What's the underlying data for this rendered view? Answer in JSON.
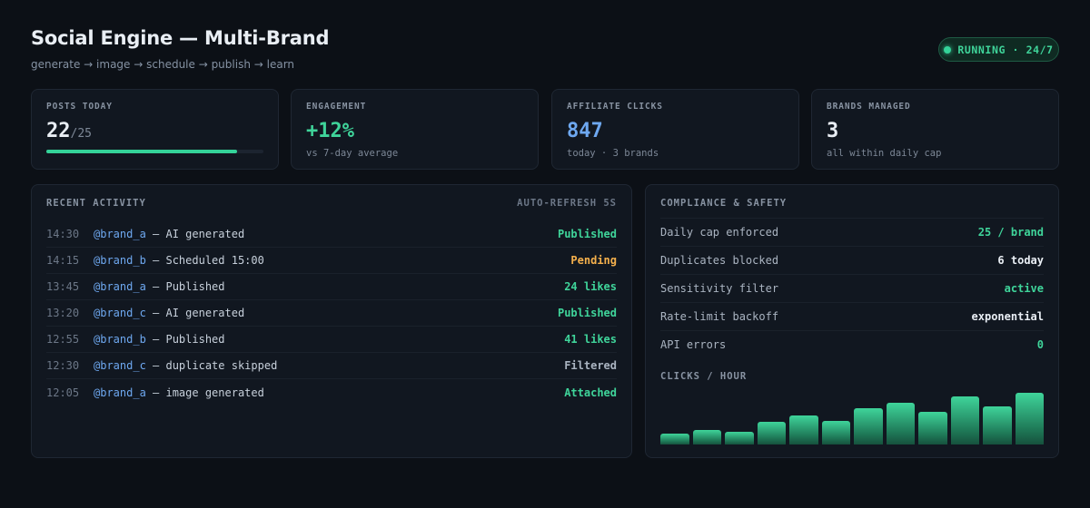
{
  "header": {
    "title": "Social Engine — Multi-Brand",
    "subtitle": "generate → image → schedule → publish → learn"
  },
  "status": {
    "label": "RUNNING · 24/7",
    "color": "#34d399"
  },
  "stats": [
    {
      "label": "POSTS TODAY",
      "value": "22",
      "of": "/25",
      "progress": 0.88,
      "color": "#e9eef4"
    },
    {
      "label": "ENGAGEMENT",
      "value": "+12%",
      "sub": "vs 7-day average",
      "color": "#3fd49a"
    },
    {
      "label": "AFFILIATE CLICKS",
      "value": "847",
      "sub": "today · 3 brands",
      "color": "#6ea8f0"
    },
    {
      "label": "BRANDS MANAGED",
      "value": "3",
      "sub": "all within daily cap",
      "color": "#e9eef4"
    }
  ],
  "activity": {
    "title": "RECENT ACTIVITY",
    "refresh": "AUTO-REFRESH 5S",
    "rows": [
      {
        "time": "14:30",
        "handle": "@brand_a",
        "desc": " — AI generated",
        "status": "Published",
        "status_color": "#3fd49a"
      },
      {
        "time": "14:15",
        "handle": "@brand_b",
        "desc": " — Scheduled 15:00",
        "status": "Pending",
        "status_color": "#f5b04c"
      },
      {
        "time": "13:45",
        "handle": "@brand_a",
        "desc": " — Published",
        "status": "24 likes",
        "status_color": "#3fd49a"
      },
      {
        "time": "13:20",
        "handle": "@brand_c",
        "desc": " — AI generated",
        "status": "Published",
        "status_color": "#3fd49a"
      },
      {
        "time": "12:55",
        "handle": "@brand_b",
        "desc": " — Published",
        "status": "41 likes",
        "status_color": "#3fd49a"
      },
      {
        "time": "12:30",
        "handle": "@brand_c",
        "desc": " — duplicate skipped",
        "status": "Filtered",
        "status_color": "#aab4c1"
      },
      {
        "time": "12:05",
        "handle": "@brand_a",
        "desc": " — image generated",
        "status": "Attached",
        "status_color": "#3fd49a"
      }
    ]
  },
  "compliance": {
    "title": "COMPLIANCE & SAFETY",
    "rows": [
      {
        "label": "Daily cap enforced",
        "value": "25 / brand",
        "color": "#3fd49a"
      },
      {
        "label": "Duplicates blocked",
        "value": "6 today",
        "color": "#e9eef4"
      },
      {
        "label": "Sensitivity filter",
        "value": "active",
        "color": "#3fd49a"
      },
      {
        "label": "Rate-limit backoff",
        "value": "exponential",
        "color": "#e9eef4"
      },
      {
        "label": "API errors",
        "value": "0",
        "color": "#3fd49a"
      }
    ],
    "clicks_title": "CLICKS / HOUR"
  },
  "chart_data": {
    "type": "bar",
    "title": "CLICKS / HOUR",
    "values": [
      20,
      27,
      24,
      42,
      54,
      44,
      66,
      76,
      60,
      89,
      70,
      95
    ],
    "ylim": [
      0,
      100
    ],
    "color": "#3fd49a"
  }
}
